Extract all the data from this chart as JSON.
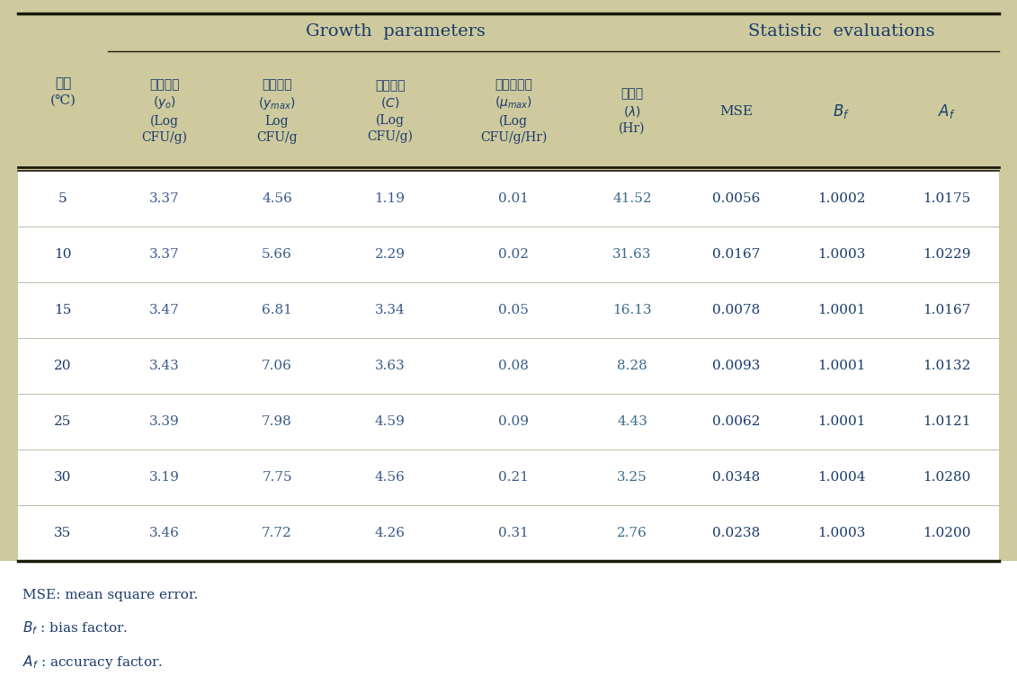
{
  "bg_color": "#ceca9e",
  "white_bg": "#ffffff",
  "title_growth": "Growth  parameters",
  "title_stat": "Statistic  evaluations",
  "rows": [
    [
      "5",
      "3.37",
      "4.56",
      "1.19",
      "0.01",
      "41.52",
      "0.0056",
      "1.0002",
      "1.0175"
    ],
    [
      "10",
      "3.37",
      "5.66",
      "2.29",
      "0.02",
      "31.63",
      "0.0167",
      "1.0003",
      "1.0229"
    ],
    [
      "15",
      "3.47",
      "6.81",
      "3.34",
      "0.05",
      "16.13",
      "0.0078",
      "1.0001",
      "1.0167"
    ],
    [
      "20",
      "3.43",
      "7.06",
      "3.63",
      "0.08",
      "8.28",
      "0.0093",
      "1.0001",
      "1.0132"
    ],
    [
      "25",
      "3.39",
      "7.98",
      "4.59",
      "0.09",
      "4.43",
      "0.0062",
      "1.0001",
      "1.0121"
    ],
    [
      "30",
      "3.19",
      "7.75",
      "4.56",
      "0.21",
      "3.25",
      "0.0348",
      "1.0004",
      "1.0280"
    ],
    [
      "35",
      "3.46",
      "7.72",
      "4.26",
      "0.31",
      "2.76",
      "0.0238",
      "1.0003",
      "1.0200"
    ]
  ],
  "header_text_color": "#1a3a6a",
  "data_col0_color": "#1a3a6a",
  "data_col1_4_color": "#3a5a8a",
  "data_col5_color": "#3a6a8a",
  "data_col6_8_color": "#1a3a6a",
  "line_color": "#1a1a0a",
  "footnote_color": "#1a3a6a"
}
